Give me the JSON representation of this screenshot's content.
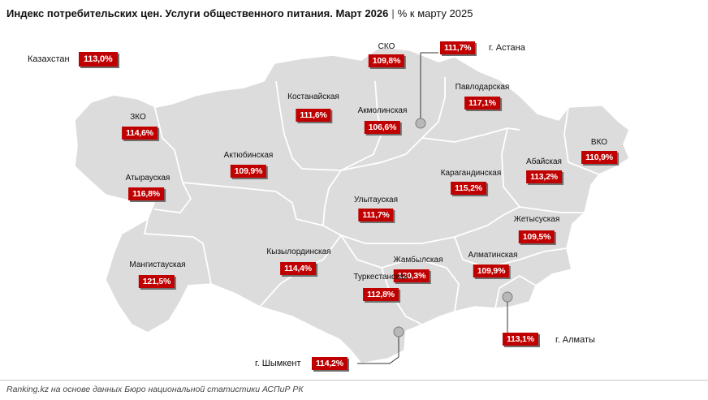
{
  "title": {
    "main": "Индекс потребительских цен. Услуги общественного питания. Март 2026",
    "separator": "|",
    "sub": "% к марту 2025"
  },
  "national": {
    "label": "Казахстан",
    "value": "113,0%"
  },
  "regions": [
    {
      "id": "sko",
      "label": "СКО",
      "value": "109,8%"
    },
    {
      "id": "kostanay",
      "label": "Костанайская",
      "value": "111,6%"
    },
    {
      "id": "akmola",
      "label": "Акмолинская",
      "value": "106,6%"
    },
    {
      "id": "pavlodar",
      "label": "Павлодарская",
      "value": "117,1%"
    },
    {
      "id": "zko",
      "label": "ЗКО",
      "value": "114,6%"
    },
    {
      "id": "aktobe",
      "label": "Актюбинская",
      "value": "109,9%"
    },
    {
      "id": "atyrau",
      "label": "Атырауская",
      "value": "116,8%"
    },
    {
      "id": "karaganda",
      "label": "Карагандинская",
      "value": "115,2%"
    },
    {
      "id": "abai",
      "label": "Абайская",
      "value": "113,2%"
    },
    {
      "id": "vko",
      "label": "ВКО",
      "value": "110,9%"
    },
    {
      "id": "ulytau",
      "label": "Улытауская",
      "value": "111,7%"
    },
    {
      "id": "zhetysu",
      "label": "Жетысуская",
      "value": "109,5%"
    },
    {
      "id": "mangystau",
      "label": "Мангистауская",
      "value": "121,5%"
    },
    {
      "id": "kyzylorda",
      "label": "Кызылординская",
      "value": "114,4%"
    },
    {
      "id": "zhambyl",
      "label": "Жамбылская",
      "value": "120,3%"
    },
    {
      "id": "almaty_region",
      "label": "Алматинская",
      "value": "109,9%"
    },
    {
      "id": "turkestan",
      "label": "Туркестанская",
      "value": "112,8%"
    }
  ],
  "cities": [
    {
      "id": "astana",
      "label": "г. Астана",
      "value": "111,7%"
    },
    {
      "id": "almaty",
      "label": "г. Алматы",
      "value": "113,1%"
    },
    {
      "id": "shymkent",
      "label": "г. Шымкент",
      "value": "114,2%"
    }
  ],
  "footer": "Ranking.kz на основе данных Бюро национальной статистики АСПиР РК",
  "colors": {
    "value_box": "#c00000",
    "region_fill": "#dcdcdc",
    "region_border": "#ffffff"
  }
}
